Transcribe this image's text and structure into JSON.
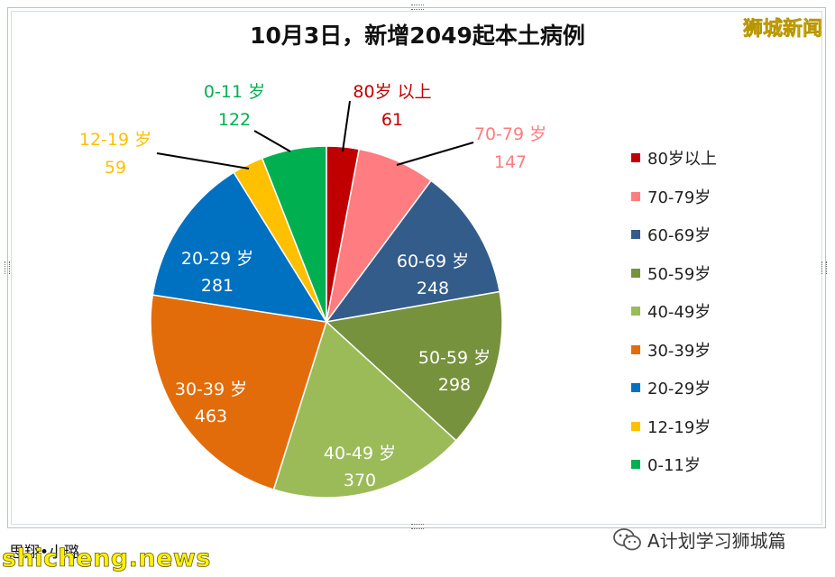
{
  "title": "10月3日，新增2049起本土病例",
  "watermark_top": "狮城新闻",
  "author": "思翔•小璐",
  "site": "shicheng.news",
  "account": "A计划学习狮城篇",
  "icons": {
    "account": "wechat-icon"
  },
  "chart_data": {
    "type": "pie",
    "start_angle": "12 o'clock, clockwise",
    "legend_position": "right",
    "title": "10月3日，新增2049起本土病例",
    "slices": [
      {
        "label": "80岁以上",
        "callout": "80岁 以上",
        "value": 61,
        "color": "#c00000"
      },
      {
        "label": "70-79岁",
        "callout": "70-79 岁",
        "value": 147,
        "color": "#ff7c80"
      },
      {
        "label": "60-69岁",
        "callout": "60-69 岁",
        "value": 248,
        "color": "#335c8a"
      },
      {
        "label": "50-59岁",
        "callout": "50-59 岁",
        "value": 298,
        "color": "#76923c"
      },
      {
        "label": "40-49岁",
        "callout": "40-49 岁",
        "value": 370,
        "color": "#9bbb59"
      },
      {
        "label": "30-39岁",
        "callout": "30-39 岁",
        "value": 463,
        "color": "#e36c0a"
      },
      {
        "label": "20-29岁",
        "callout": "20-29 岁",
        "value": 281,
        "color": "#0070c0"
      },
      {
        "label": "12-19岁",
        "callout": "12-19 岁",
        "value": 59,
        "color": "#ffc000"
      },
      {
        "label": "0-11岁",
        "callout": "0-11 岁",
        "value": 122,
        "color": "#00b050"
      }
    ]
  }
}
